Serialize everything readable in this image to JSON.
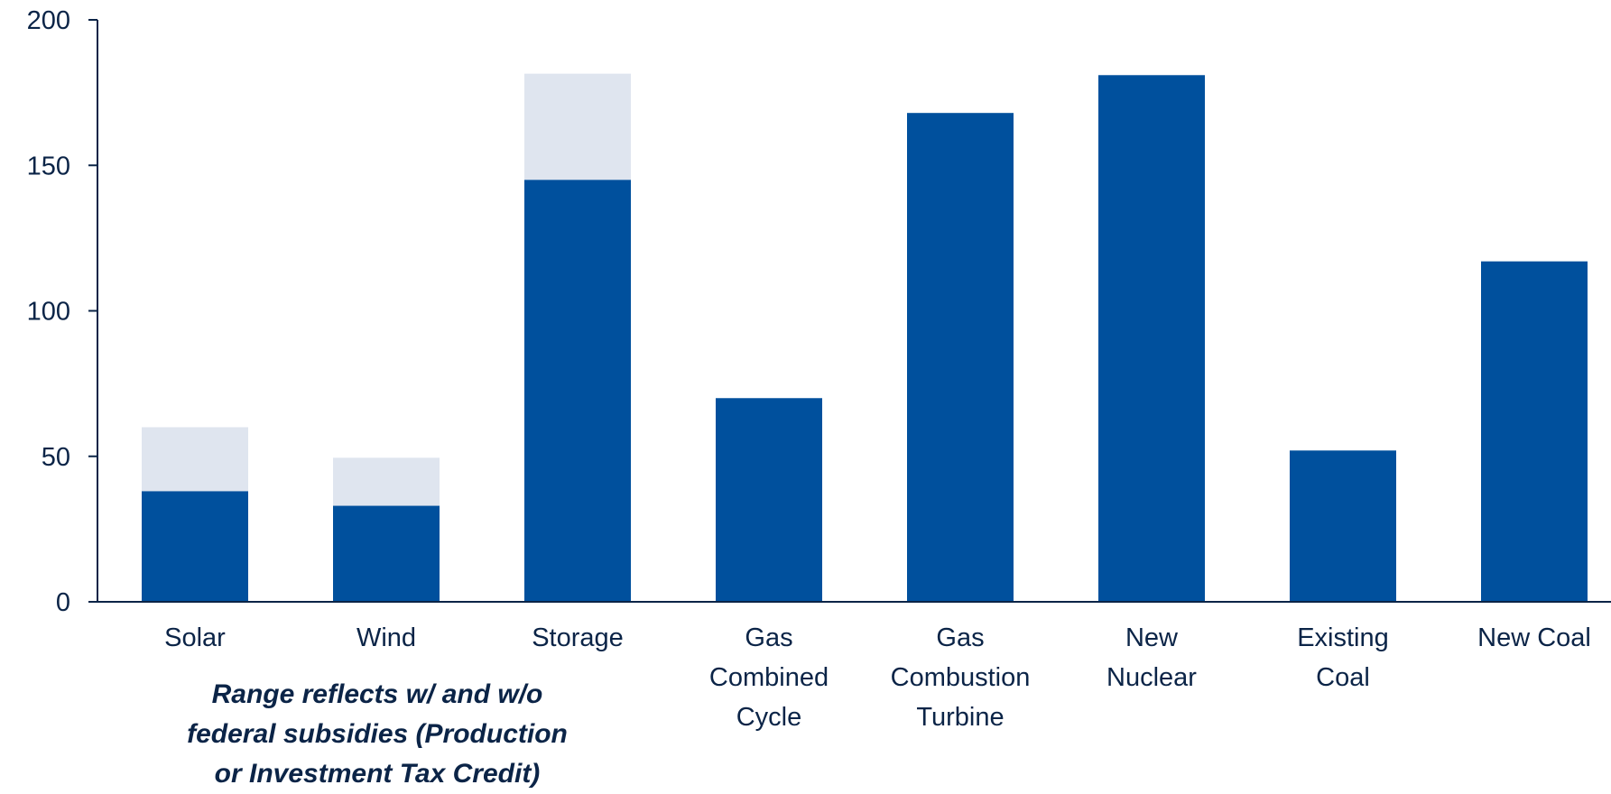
{
  "colors": {
    "base": "#00509d",
    "range": "#dfe5ef",
    "axis": "#0b2447",
    "text": "#0b2447"
  },
  "annotation": {
    "line1": "Range reflects w/ and w/o",
    "line2": "federal subsidies (Production",
    "line3": "or Investment Tax Credit)"
  },
  "chart_data": {
    "type": "bar",
    "title": "",
    "xlabel": "",
    "ylabel": "",
    "ylim": [
      0,
      200
    ],
    "yticks": [
      0,
      50,
      100,
      150,
      200
    ],
    "yticks_labels": [
      "0",
      "50",
      "100",
      "150",
      "200"
    ],
    "grid": false,
    "categories": [
      [
        "Solar"
      ],
      [
        "Wind"
      ],
      [
        "Storage"
      ],
      [
        "Gas",
        "Combined",
        "Cycle"
      ],
      [
        "Gas",
        "Combustion",
        "Turbine"
      ],
      [
        "New",
        "Nuclear"
      ],
      [
        "Existing",
        "Coal"
      ],
      [
        "New Coal"
      ]
    ],
    "series": [
      {
        "values": [
          38,
          33,
          145,
          70,
          168,
          181,
          52,
          117
        ]
      },
      {
        "values": [
          60,
          49.5,
          181.5,
          null,
          null,
          null,
          null,
          null
        ]
      }
    ]
  }
}
